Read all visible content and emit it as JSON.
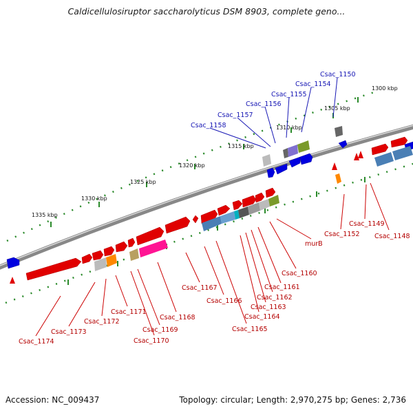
{
  "title": "Caldicellulosiruptor saccharolyticus DSM 8903, complete geno...",
  "footer": {
    "accession": "Accession: NC_009437",
    "summary": "Topology: circular; Length: 2,970,275 bp; Genes: 2,736"
  },
  "ruler_labels": [
    "1300 kbp",
    "1305 kbp",
    "1310 kbp",
    "1315 kbp",
    "1320 kbp",
    "1325 kbp",
    "1330 kbp",
    "1335 kbp"
  ],
  "colors": {
    "forward_gene": "#e00000",
    "reverse_gene": "#0000e0",
    "gray_gene": "#777777",
    "light_gray_gene": "#bbbbbb",
    "steel_blue_gene": "#4a7fb5",
    "olive_gene": "#7a9a2a",
    "orange_gene": "#ff8800",
    "magenta_gene": "#ff1493",
    "tan_gene": "#b8a060",
    "violet_gene": "#8070d0",
    "cyan_gene": "#00b0c0",
    "ruler_tick": "#2a8a2a",
    "backbone": "#8a8a8a"
  },
  "gene_labels": {
    "top_strand": [
      "Csac_1150",
      "Csac_1154",
      "Csac_1155",
      "Csac_1156",
      "Csac_1157",
      "Csac_1158"
    ],
    "bottom_strand": [
      "Csac_1148",
      "Csac_1149",
      "Csac_1152",
      "murB",
      "Csac_1160",
      "Csac_1161",
      "Csac_1162",
      "Csac_1163",
      "Csac_1164",
      "Csac_1165",
      "Csac_1166",
      "Csac_1167",
      "Csac_1168",
      "Csac_1169",
      "Csac_1170",
      "Csac_1171",
      "Csac_1172",
      "Csac_1173",
      "Csac_1174"
    ]
  }
}
